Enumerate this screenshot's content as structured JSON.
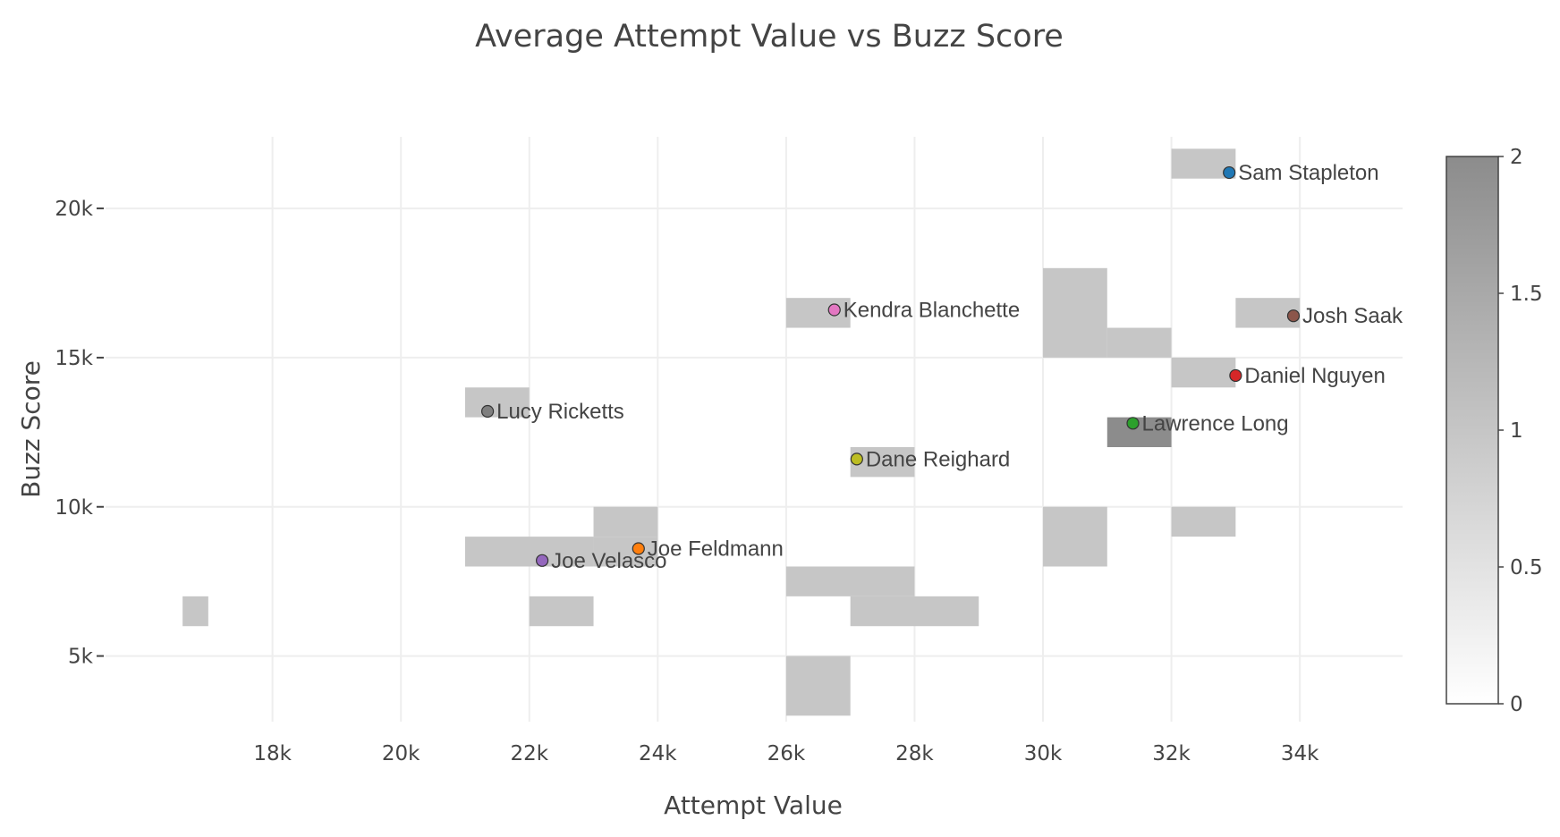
{
  "chart_data": {
    "type": "scatter",
    "title": "Average Attempt Value vs Buzz Score",
    "xlabel": "Attempt Value",
    "ylabel": "Buzz Score",
    "xlim": [
      15400,
      35600
    ],
    "ylim": [
      2800,
      22400
    ],
    "x_ticks": [
      18000,
      20000,
      22000,
      24000,
      26000,
      28000,
      30000,
      32000,
      34000
    ],
    "x_tick_labels": [
      "18k",
      "20k",
      "22k",
      "24k",
      "26k",
      "28k",
      "30k",
      "32k",
      "34k"
    ],
    "y_ticks": [
      5000,
      10000,
      15000,
      20000
    ],
    "y_tick_labels": [
      "5k",
      "10k",
      "15k",
      "20k"
    ],
    "points": [
      {
        "name": "Sam Stapleton",
        "x": 32900,
        "y": 21200,
        "color": "#1f77b4"
      },
      {
        "name": "Kendra Blanchette",
        "x": 26750,
        "y": 16600,
        "color": "#e377c2"
      },
      {
        "name": "Josh Saak",
        "x": 33900,
        "y": 16400,
        "color": "#8c564b"
      },
      {
        "name": "Daniel Nguyen",
        "x": 33000,
        "y": 14400,
        "color": "#d62728"
      },
      {
        "name": "Lucy Ricketts",
        "x": 21350,
        "y": 13200,
        "color": "#7f7f7f"
      },
      {
        "name": "Lawrence Long",
        "x": 31400,
        "y": 12800,
        "color": "#2ca02c"
      },
      {
        "name": "Dane Reighard",
        "x": 27100,
        "y": 11600,
        "color": "#bcbd22"
      },
      {
        "name": "Joe Feldmann",
        "x": 23700,
        "y": 8600,
        "color": "#ff7f0e"
      },
      {
        "name": "Joe Velasco",
        "x": 22200,
        "y": 8200,
        "color": "#9467bd"
      }
    ],
    "density_bins": [
      {
        "x0": 32000,
        "x1": 33000,
        "y0": 21000,
        "y1": 22000,
        "count": 1
      },
      {
        "x0": 26000,
        "x1": 27000,
        "y0": 16000,
        "y1": 17000,
        "count": 1
      },
      {
        "x0": 33000,
        "x1": 34000,
        "y0": 16000,
        "y1": 17000,
        "count": 1
      },
      {
        "x0": 30000,
        "x1": 31000,
        "y0": 15000,
        "y1": 18000,
        "count": 1
      },
      {
        "x0": 31000,
        "x1": 32000,
        "y0": 15000,
        "y1": 16000,
        "count": 1
      },
      {
        "x0": 32000,
        "x1": 33000,
        "y0": 14000,
        "y1": 15000,
        "count": 1
      },
      {
        "x0": 21000,
        "x1": 22000,
        "y0": 13000,
        "y1": 14000,
        "count": 1
      },
      {
        "x0": 31000,
        "x1": 32000,
        "y0": 12000,
        "y1": 13000,
        "count": 2
      },
      {
        "x0": 27000,
        "x1": 28000,
        "y0": 11000,
        "y1": 12000,
        "count": 1
      },
      {
        "x0": 23000,
        "x1": 24000,
        "y0": 9000,
        "y1": 10000,
        "count": 1
      },
      {
        "x0": 21000,
        "x1": 23000,
        "y0": 8000,
        "y1": 9000,
        "count": 1
      },
      {
        "x0": 23000,
        "x1": 24000,
        "y0": 8000,
        "y1": 9000,
        "count": 1
      },
      {
        "x0": 30000,
        "x1": 31000,
        "y0": 8000,
        "y1": 10000,
        "count": 1
      },
      {
        "x0": 32000,
        "x1": 33000,
        "y0": 9000,
        "y1": 10000,
        "count": 1
      },
      {
        "x0": 26000,
        "x1": 28000,
        "y0": 7000,
        "y1": 8000,
        "count": 1
      },
      {
        "x0": 27000,
        "x1": 29000,
        "y0": 6000,
        "y1": 7000,
        "count": 1
      },
      {
        "x0": 22000,
        "x1": 23000,
        "y0": 6000,
        "y1": 7000,
        "count": 1
      },
      {
        "x0": 16600,
        "x1": 17000,
        "y0": 6000,
        "y1": 7000,
        "count": 1
      },
      {
        "x0": 26000,
        "x1": 27000,
        "y0": 3000,
        "y1": 5000,
        "count": 1
      }
    ],
    "colorbar": {
      "min": 0,
      "max": 2,
      "ticks": [
        0,
        0.5,
        1,
        1.5,
        2
      ],
      "tick_labels": [
        "0",
        "0.5",
        "1",
        "1.5",
        "2"
      ],
      "color_low": "#ffffff",
      "color_high": "#8c8c8c"
    }
  }
}
